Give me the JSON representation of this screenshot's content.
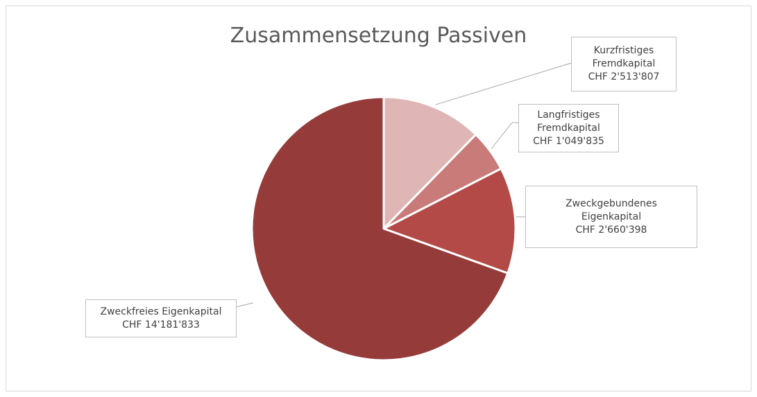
{
  "chart_data": {
    "type": "pie",
    "title": "Zusammensetzung Passiven",
    "categories": [
      "Kurzfristiges Fremdkapital",
      "Langfristiges Fremdkapital",
      "Zweckgebundenes Eigenkapital",
      "Zweckfreies Eigenkapital"
    ],
    "values": [
      2513807,
      1049835,
      2660398,
      14181833
    ],
    "value_labels": [
      "CHF 2'513'807",
      "CHF 1'049'835",
      "CHF 2'660'398",
      "CHF 14'181'833"
    ],
    "colors": [
      "#dfb5b5",
      "#c97b7a",
      "#b34a47",
      "#953b3a"
    ]
  }
}
